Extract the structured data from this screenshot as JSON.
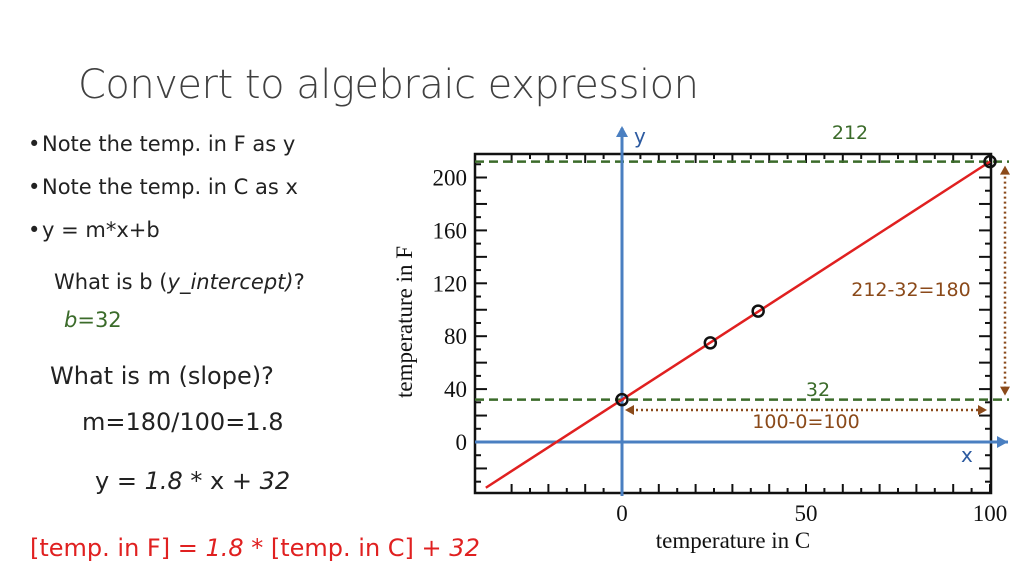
{
  "slide": {
    "title": "Convert to algebraic expression",
    "bullets": [
      "Note the temp. in F as y",
      "Note the temp. in C as x",
      "y = m*x+b"
    ],
    "q_b_prefix": "What is b (",
    "q_b_italic": "y_intercept)",
    "q_b_suffix": "?",
    "b_var": "b",
    "b_eq": "=32",
    "q_m": "What is m (slope)?",
    "m_answer": "m=180/100=1.8",
    "eq_y": "y = ",
    "eq_m": "1.8",
    "eq_mid": " * x  +  ",
    "eq_b": "32",
    "final_lhs": "[temp. in F] = ",
    "final_m": "1.8",
    "final_mid": " * [temp. in C]  +  ",
    "final_b": "32"
  },
  "chart": {
    "y_axis_label": "y",
    "x_axis_label": "x",
    "xlabel": "temperature in C",
    "ylabel": "temperature in F",
    "label_212": "212",
    "label_32": "32",
    "label_delta_y": "212-32=180",
    "label_delta_x": "100-0=100",
    "colors": {
      "line": "#e02020",
      "axis": "#4a7fc1",
      "dashed": "#3b6b2a",
      "arrow": "#8b4a1a"
    }
  },
  "chart_data": {
    "type": "line",
    "xlabel": "temperature in C",
    "ylabel": "temperature in F",
    "xlim": [
      -37,
      100
    ],
    "ylim": [
      -35,
      212
    ],
    "xticks": [
      0,
      50,
      100
    ],
    "yticks": [
      0,
      40,
      80,
      120,
      160,
      200
    ],
    "series": [
      {
        "x": [
          -37,
          100
        ],
        "y": [
          -34.6,
          212
        ]
      }
    ],
    "points": [
      {
        "x": 0,
        "y": 32
      },
      {
        "x": 24,
        "y": 75
      },
      {
        "x": 37,
        "y": 99
      },
      {
        "x": 100,
        "y": 212
      }
    ],
    "reference_lines": [
      212,
      32
    ]
  }
}
